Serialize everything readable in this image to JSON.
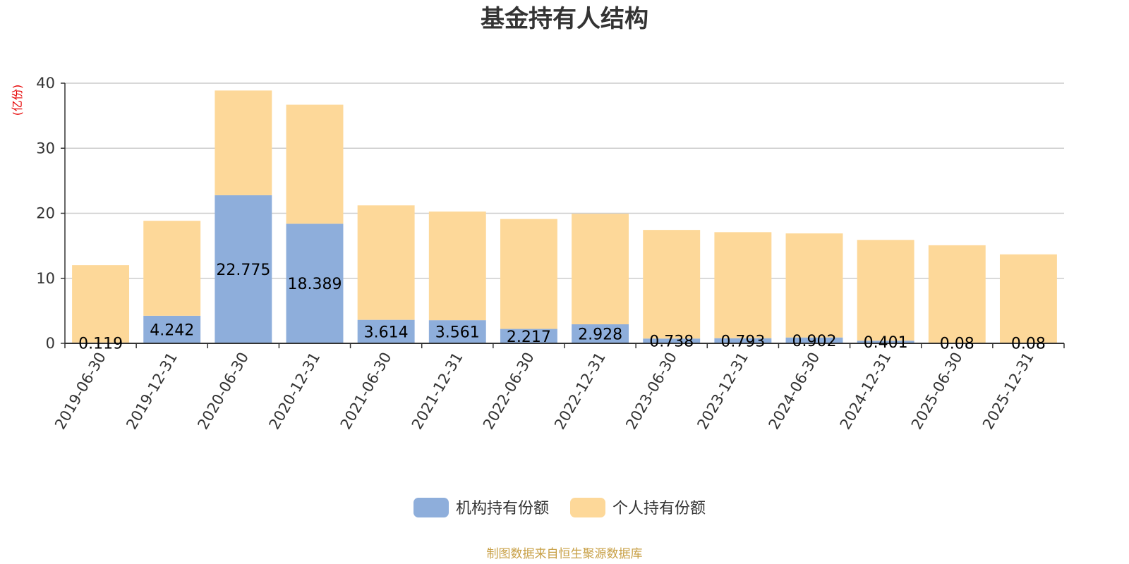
{
  "chart_data": {
    "type": "bar",
    "stacked": true,
    "title": "基金持有人结构",
    "ylabel": "(亿份)",
    "ylim": [
      0,
      40
    ],
    "yticks": [
      "0",
      "10",
      "20",
      "30",
      "40"
    ],
    "grid": true,
    "legend_position": "bottom-center",
    "categories": [
      "2019-06-30",
      "2019-12-31",
      "2020-06-30",
      "2020-12-31",
      "2021-06-30",
      "2021-12-31",
      "2022-06-30",
      "2022-12-31",
      "2023-06-30",
      "2023-12-31",
      "2024-06-30",
      "2024-12-31",
      "2025-06-30",
      "2025-12-31"
    ],
    "series": [
      {
        "name": "机构持有份额",
        "color": "#8eaedb",
        "values": [
          0.119,
          4.242,
          22.775,
          18.389,
          3.614,
          3.561,
          2.217,
          2.928,
          0.738,
          0.793,
          0.902,
          0.401,
          0.08,
          0.08
        ],
        "labels": [
          "0.119",
          "4.242",
          "22.775",
          "18.389",
          "3.614",
          "3.561",
          "2.217",
          "2.928",
          "0.738",
          "0.793",
          "0.902",
          "0.401",
          "0.08",
          "0.08"
        ]
      },
      {
        "name": "个人持有份额",
        "color": "#fdd899",
        "values": [
          11.9,
          14.6,
          16.1,
          18.3,
          17.6,
          16.7,
          16.9,
          17.0,
          16.7,
          16.3,
          16.0,
          15.5,
          15.0,
          13.6
        ]
      }
    ],
    "source": "制图数据来自恒生聚源数据库"
  }
}
